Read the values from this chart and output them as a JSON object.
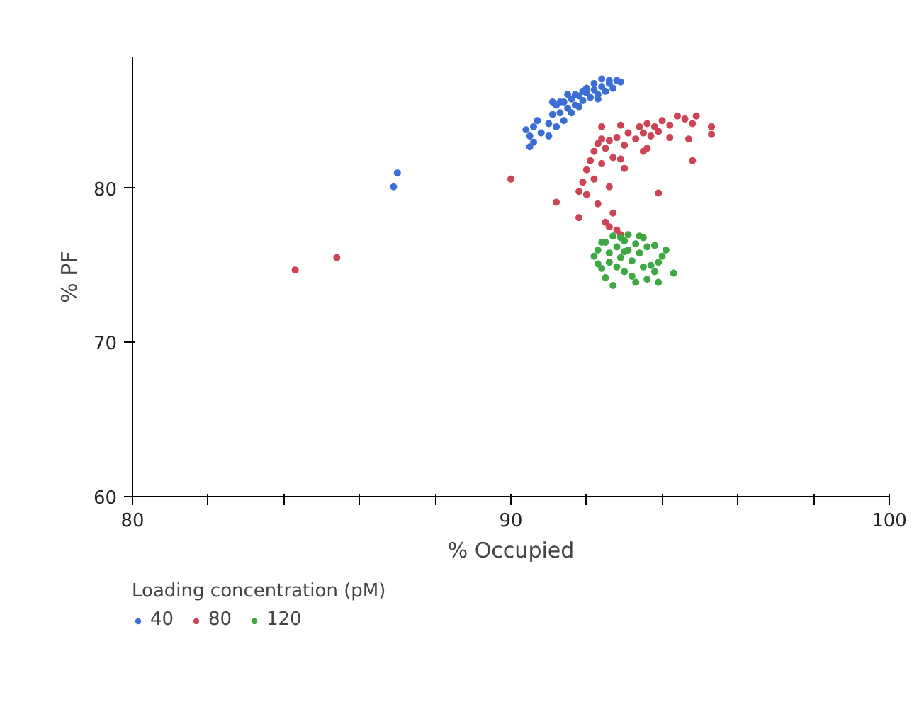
{
  "chart_data": {
    "type": "scatter",
    "xlabel": "% Occupied",
    "ylabel": "% PF",
    "legend_title": "Loading concentration (pM)",
    "xlim": [
      80,
      100
    ],
    "ylim": [
      60,
      88.5
    ],
    "xticks": [
      80,
      {
        "value": 82,
        "label": null
      },
      {
        "value": 84,
        "label": null
      },
      {
        "value": 86,
        "label": null
      },
      {
        "value": 88,
        "label": null
      },
      90,
      {
        "value": 92,
        "label": null
      },
      {
        "value": 94,
        "label": null
      },
      {
        "value": 96,
        "label": null
      },
      {
        "value": 98,
        "label": null
      },
      100
    ],
    "yticks": [
      60,
      70,
      80
    ],
    "grid": false,
    "legend": "bottom left",
    "marker": "circle",
    "series": [
      {
        "name": "40",
        "color": "#3c6fd4",
        "x": [
          87.0,
          86.9,
          90.5,
          90.6,
          90.5,
          90.4,
          90.6,
          90.7,
          90.8,
          91.0,
          91.1,
          91.0,
          91.3,
          91.2,
          91.4,
          91.5,
          91.6,
          91.7,
          91.8,
          91.9,
          92.0,
          92.1,
          92.2,
          92.3,
          92.4,
          92.5,
          92.6,
          92.7,
          92.8,
          92.4,
          92.2,
          92.0,
          91.8,
          91.6,
          91.3,
          91.1,
          91.5,
          92.6,
          92.9,
          92.3,
          91.9,
          91.7,
          91.4,
          91.2
        ],
        "values": [
          81.0,
          80.1,
          82.7,
          83.0,
          83.4,
          83.8,
          84.0,
          84.4,
          83.6,
          84.2,
          84.8,
          83.4,
          84.9,
          85.4,
          85.6,
          85.2,
          85.8,
          85.4,
          86.0,
          85.7,
          86.2,
          85.9,
          86.4,
          86.1,
          86.6,
          86.3,
          86.8,
          86.5,
          87.0,
          87.1,
          86.8,
          86.5,
          85.3,
          84.9,
          85.6,
          85.6,
          86.1,
          87.0,
          86.9,
          85.8,
          86.3,
          86.1,
          84.4,
          84.0
        ]
      },
      {
        "name": "80",
        "color": "#cc4455",
        "x": [
          84.3,
          85.4,
          90.0,
          91.2,
          91.8,
          91.8,
          91.9,
          92.0,
          92.1,
          92.2,
          92.3,
          92.4,
          92.5,
          92.2,
          92.0,
          92.4,
          92.6,
          92.8,
          93.0,
          92.9,
          93.1,
          93.3,
          93.4,
          93.5,
          93.6,
          93.7,
          93.8,
          93.9,
          94.0,
          94.2,
          94.4,
          94.6,
          94.8,
          95.3,
          95.3,
          94.7,
          94.8,
          93.9,
          93.5,
          93.0,
          92.6,
          92.3,
          92.5,
          92.7,
          92.6,
          92.8,
          92.9,
          92.4,
          94.2,
          93.6,
          92.9,
          92.7,
          94.9
        ],
        "values": [
          74.7,
          75.5,
          80.6,
          79.1,
          78.1,
          79.8,
          80.4,
          81.2,
          81.8,
          82.4,
          82.9,
          83.2,
          82.6,
          80.6,
          79.6,
          81.6,
          83.1,
          83.3,
          82.8,
          81.9,
          83.6,
          83.2,
          84.0,
          83.6,
          84.2,
          83.4,
          84.0,
          83.7,
          84.4,
          84.1,
          84.7,
          84.5,
          84.2,
          84.0,
          83.5,
          83.2,
          81.8,
          79.7,
          82.4,
          81.3,
          80.1,
          79.0,
          77.8,
          78.4,
          77.5,
          77.3,
          77.0,
          84.0,
          83.3,
          82.6,
          84.1,
          82.0,
          84.7
        ]
      },
      {
        "name": "120",
        "color": "#3fa843",
        "x": [
          92.3,
          92.5,
          92.6,
          92.7,
          92.8,
          92.9,
          93.0,
          93.1,
          93.2,
          93.3,
          93.4,
          93.5,
          93.6,
          93.7,
          93.8,
          93.9,
          94.0,
          94.3,
          94.1,
          92.4,
          92.5,
          92.7,
          93.0,
          93.2,
          93.3,
          93.5,
          92.6,
          92.2,
          92.9,
          93.1,
          93.4,
          92.8,
          93.6,
          93.9,
          92.3,
          93.0,
          92.4,
          93.8
        ],
        "values": [
          76.0,
          76.5,
          75.8,
          76.9,
          76.2,
          75.5,
          76.6,
          76.0,
          75.3,
          76.4,
          75.8,
          76.8,
          76.2,
          75.0,
          74.6,
          73.9,
          75.6,
          74.5,
          76.0,
          74.8,
          74.2,
          73.7,
          74.6,
          74.3,
          73.9,
          74.9,
          75.2,
          75.6,
          76.8,
          77.0,
          76.9,
          74.9,
          74.1,
          75.2,
          75.1,
          75.9,
          76.5,
          76.3
        ]
      }
    ]
  }
}
